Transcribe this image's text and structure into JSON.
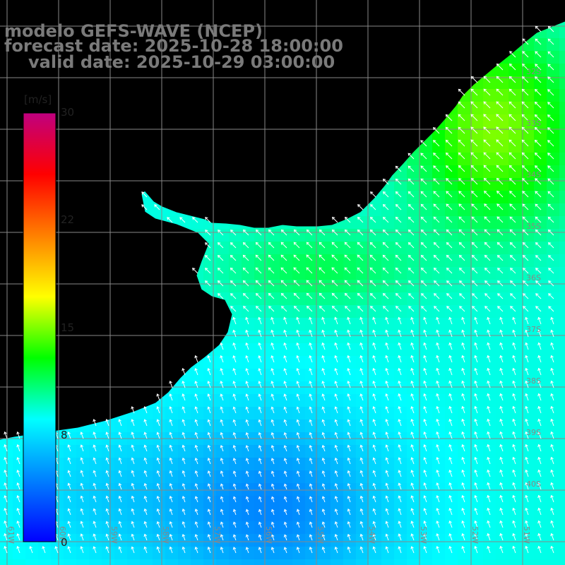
{
  "title": {
    "line1": "modelo GEFS-WAVE (NCEP)",
    "line2": "forecast date: 2025-10-28 18:00:00",
    "line3": "valid date: 2025-10-29 03:00:00"
  },
  "colorbar": {
    "unit": "[m/s]",
    "ticks": [
      "30",
      "22",
      "15",
      "8",
      "0"
    ],
    "min": 0,
    "max": 30,
    "stops": [
      "#0000ff",
      "#0080ff",
      "#00ffff",
      "#00ff00",
      "#ffff00",
      "#ff8000",
      "#ff0000",
      "#c0007f"
    ]
  },
  "lat_labels": [
    "32S",
    "33S",
    "34S",
    "35S",
    "36S",
    "37S",
    "38S",
    "39S",
    "40S"
  ],
  "lon_labels": [
    "61W",
    "60W",
    "59W",
    "58W",
    "57W",
    "56W",
    "55W",
    "54W",
    "53W",
    "52W",
    "51W"
  ],
  "colors": {
    "land": "#ffffff",
    "coast": "#000000",
    "grid": "#888888",
    "title": "#7a7a7a",
    "arrow": "#ffffff"
  }
}
